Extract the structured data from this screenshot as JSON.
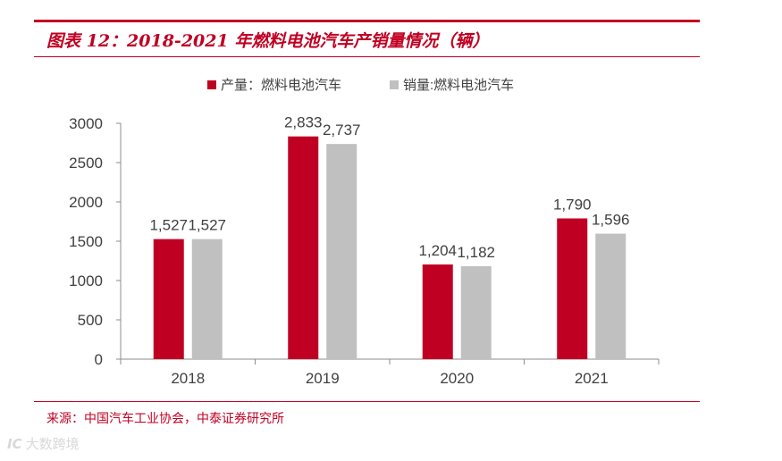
{
  "figure": {
    "title": "图表 12：2018-2021 年燃料电池汽车产销量情况（辆）",
    "source": "来源：中国汽车工业协会，中泰证券研究所",
    "watermark": "大数跨境",
    "watermark_logo": "IC"
  },
  "colors": {
    "accent": "#c00023",
    "production": "#c00023",
    "sales": "#c0c0c0",
    "axis": "#8c8c8c",
    "text": "#404040"
  },
  "chart_data": {
    "type": "bar",
    "title": "",
    "categories": [
      "2018",
      "2019",
      "2020",
      "2021"
    ],
    "series": [
      {
        "name": "产量：燃料电池汽车",
        "values": [
          1527,
          2833,
          1204,
          1790
        ],
        "labels": [
          "1,527",
          "2,833",
          "1,204",
          "1,790"
        ]
      },
      {
        "name": "销量:燃料电池汽车",
        "values": [
          1527,
          2737,
          1182,
          1596
        ],
        "labels": [
          "1,527",
          "2,737",
          "1,182",
          "1,596"
        ]
      }
    ],
    "yticks": [
      0,
      500,
      1000,
      1500,
      2000,
      2500,
      3000
    ],
    "ylim": [
      0,
      3000
    ],
    "xlabel": "",
    "ylabel": "",
    "grid": false,
    "legend": "top-center"
  }
}
